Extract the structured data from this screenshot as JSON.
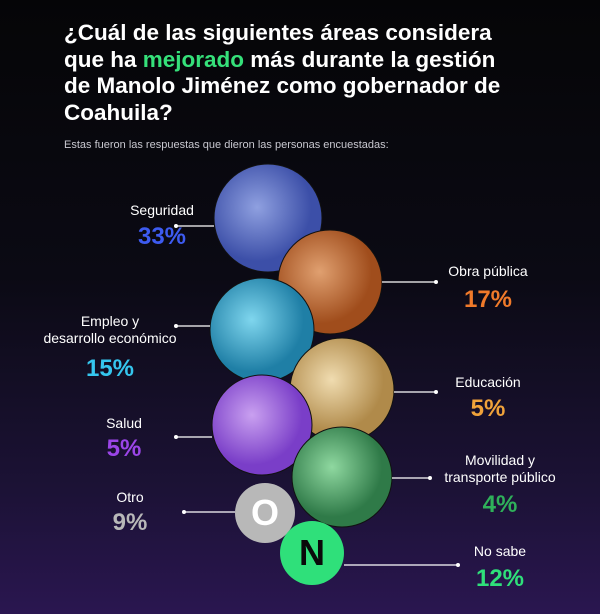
{
  "header": {
    "title_lines": [
      [
        "¿Cuál de las siguientes áreas considera"
      ],
      [
        "que ha ",
        "mejorado",
        " más durante la gestión"
      ],
      [
        "de Manolo Jiménez como gobernador de"
      ],
      [
        "Coahuila?"
      ]
    ],
    "subtitle": "Estas fueron las respuestas que dieron las personas encuestadas:"
  },
  "items": [
    {
      "label_lines": [
        "Seguridad"
      ],
      "value": "33%",
      "color": "#3d5bf0"
    },
    {
      "label_lines": [
        "Obra pública"
      ],
      "value": "17%",
      "color": "#f07a2a"
    },
    {
      "label_lines": [
        "Empleo y",
        "desarrollo económico"
      ],
      "value": "15%",
      "color": "#35c6ee"
    },
    {
      "label_lines": [
        "Educación"
      ],
      "value": "5%",
      "color": "#f0a23a"
    },
    {
      "label_lines": [
        "Salud"
      ],
      "value": "5%",
      "color": "#9b45e8"
    },
    {
      "label_lines": [
        "Movilidad y",
        "transporte público"
      ],
      "value": "4%",
      "color": "#2fb05a"
    },
    {
      "label_lines": [
        "Otro"
      ],
      "value": "9%",
      "color": "#b8b8b8",
      "icon": "O"
    },
    {
      "label_lines": [
        "No sabe"
      ],
      "value": "12%",
      "color": "#2fe07a",
      "icon": "N"
    }
  ]
}
